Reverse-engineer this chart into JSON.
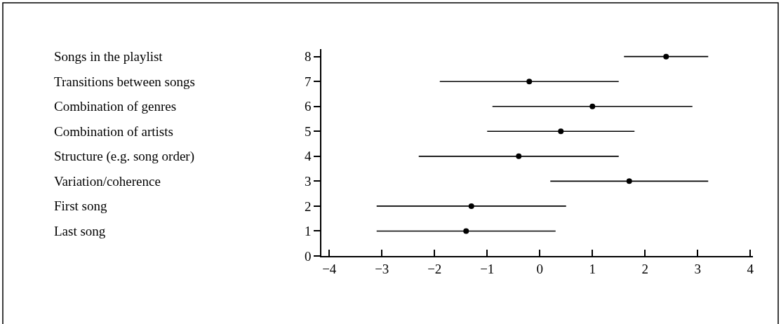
{
  "chart_data": {
    "type": "scatter",
    "x": [
      -1.4,
      -1.3,
      1.7,
      -0.4,
      0.4,
      1.0,
      -0.2,
      2.4
    ],
    "values": [
      1,
      2,
      3,
      4,
      5,
      6,
      7,
      8
    ],
    "xerrors": [
      [
        -3.1,
        0.3
      ],
      [
        -3.1,
        0.5
      ],
      [
        0.2,
        3.2
      ],
      [
        -2.3,
        1.5
      ],
      [
        -1.0,
        1.8
      ],
      [
        -0.9,
        2.9
      ],
      [
        -1.9,
        1.5
      ],
      [
        1.6,
        3.2
      ]
    ],
    "color": "#000000",
    "marker": "circle",
    "xlim": [
      -4.15,
      4.05
    ],
    "xticks": [
      -4,
      -3,
      -2,
      -1,
      0,
      1,
      2,
      3,
      4
    ],
    "ylim": [
      0,
      8.3
    ],
    "yticks": [
      0,
      1,
      2,
      3,
      4,
      5,
      6,
      7,
      8
    ],
    "legend": false,
    "annotations": [
      "Last song",
      "First song",
      "Variation/coherence",
      "Structure (e.g. song order)",
      "Combination of artists",
      "Combination of genres",
      "Transitions between songs",
      "Songs in the playlist"
    ]
  }
}
